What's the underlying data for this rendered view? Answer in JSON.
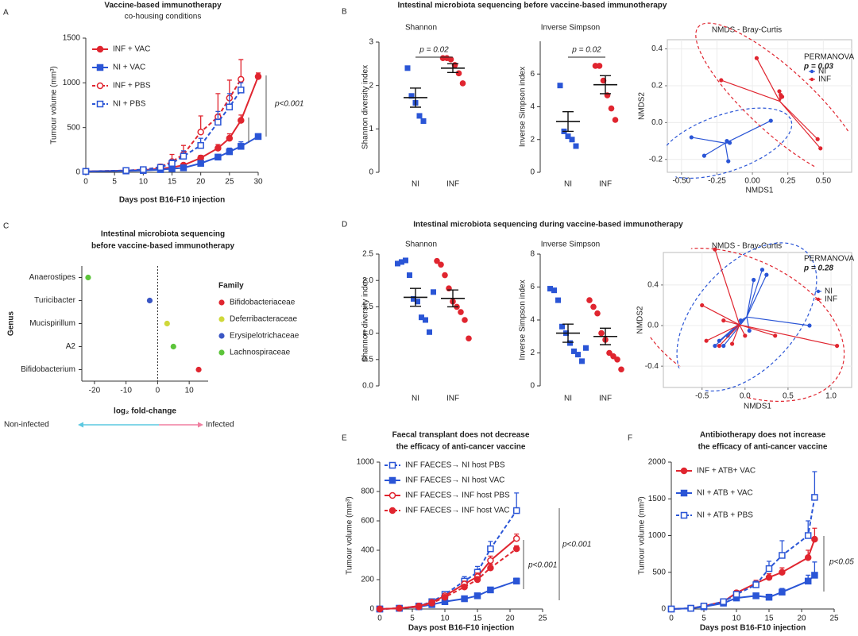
{
  "chart_data": [
    {
      "type": "line",
      "panel": "A",
      "title": "Vaccine-based immunotherapy",
      "subtitle": "co-housing conditions",
      "xlabel": "Days post B16-F10 injection",
      "ylabel": "Tumour volume (mm³)",
      "x": [
        0,
        7,
        10,
        13,
        15,
        17,
        20,
        23,
        25,
        27,
        30
      ],
      "xlim": [
        0,
        30
      ],
      "xticks": [
        0,
        5,
        10,
        15,
        20,
        25,
        30
      ],
      "ylim": [
        0,
        1500
      ],
      "yticks": [
        0,
        500,
        1000,
        1500
      ],
      "series": [
        {
          "name": "INF + VAC",
          "color": "#e0252f",
          "marker": "circle",
          "filled": true,
          "dashed": false,
          "values": [
            10,
            20,
            25,
            40,
            55,
            80,
            160,
            270,
            380,
            580,
            1070
          ],
          "errors": [
            5,
            5,
            8,
            10,
            15,
            20,
            30,
            40,
            50,
            60,
            40
          ]
        },
        {
          "name": "NI + VAC",
          "color": "#2a55d6",
          "marker": "square",
          "filled": true,
          "dashed": false,
          "values": [
            10,
            15,
            20,
            30,
            40,
            50,
            100,
            170,
            230,
            290,
            400
          ],
          "errors": [
            5,
            5,
            5,
            8,
            10,
            12,
            20,
            30,
            40,
            50,
            30
          ]
        },
        {
          "name": "INF + PBS",
          "color": "#e0252f",
          "marker": "circle",
          "filled": false,
          "dashed": true,
          "values": [
            10,
            20,
            30,
            60,
            120,
            200,
            450,
            620,
            830,
            1040,
            null
          ],
          "errors": [
            5,
            10,
            15,
            30,
            80,
            100,
            180,
            260,
            200,
            220,
            null
          ]
        },
        {
          "name": "NI + PBS",
          "color": "#2a55d6",
          "marker": "square",
          "filled": false,
          "dashed": true,
          "values": [
            10,
            20,
            30,
            55,
            100,
            180,
            300,
            560,
            730,
            920,
            null
          ],
          "errors": [
            5,
            10,
            15,
            25,
            40,
            60,
            80,
            120,
            150,
            80,
            null
          ]
        }
      ],
      "annotations": [
        "p<0.001"
      ]
    },
    {
      "type": "strip",
      "panel": "B",
      "group_title": "Intestinal microbiota sequencing before vaccine-based immunotherapy",
      "title": "Shannon",
      "ylabel": "Shannon diversity index",
      "categories": [
        "NI",
        "INF"
      ],
      "ylim": [
        0,
        3
      ],
      "yticks": [
        0,
        1,
        2,
        3
      ],
      "groups": [
        {
          "color": "#2a55d6",
          "marker": "square",
          "values": [
            2.4,
            1.76,
            1.6,
            1.3,
            1.18
          ],
          "mean": 1.72,
          "sem": 0.22
        },
        {
          "color": "#e0252f",
          "marker": "circle",
          "values": [
            2.63,
            2.63,
            2.6,
            2.47,
            2.28,
            2.05
          ],
          "mean": 2.4,
          "sem": 0.1
        }
      ],
      "annotation": "p = 0.02"
    },
    {
      "type": "strip",
      "title": "Inverse Simpson",
      "ylabel": "Inverse Simpson index",
      "categories": [
        "NI",
        "INF"
      ],
      "ylim": [
        0,
        8
      ],
      "yticks": [
        0,
        2,
        4,
        6
      ],
      "groups": [
        {
          "color": "#2a55d6",
          "marker": "square",
          "values": [
            5.3,
            2.5,
            2.2,
            2.0,
            1.6
          ],
          "mean": 3.1,
          "sem": 0.6
        },
        {
          "color": "#e0252f",
          "marker": "circle",
          "values": [
            6.5,
            6.5,
            5.6,
            4.7,
            3.9,
            3.2
          ],
          "mean": 5.35,
          "sem": 0.55
        }
      ],
      "annotation": "p = 0.02"
    },
    {
      "type": "scatter",
      "title": "NMDS - Bray-Curtis",
      "xlabel": "NMDS1",
      "ylabel": "NMDS2",
      "xlim": [
        -0.6,
        0.7
      ],
      "ylim": [
        -0.27,
        0.45
      ],
      "xticks": [
        {
          "value": -0.5,
          "label": "-0.50"
        },
        -0.25,
        {
          "value": 0,
          "label": "0.00"
        },
        0.25,
        {
          "value": 0.5,
          "label": "0.50"
        }
      ],
      "yticks": [
        -0.2,
        {
          "value": 0,
          "label": "0.0"
        },
        0.2,
        0.4
      ],
      "grid": true,
      "series": [
        {
          "name": "NI",
          "color": "#2a55d6",
          "x": [
            -0.17,
            -0.18,
            -0.34,
            -0.43,
            0.13,
            -0.16
          ],
          "y": [
            -0.21,
            -0.1,
            -0.18,
            -0.08,
            0.01,
            -0.11
          ]
        },
        {
          "name": "INF",
          "color": "#e0252f",
          "x": [
            0.48,
            0.46,
            -0.22,
            0.21,
            0.2,
            0.19,
            0.03
          ],
          "y": [
            -0.14,
            -0.09,
            0.23,
            0.14,
            0.15,
            0.17,
            0.35
          ]
        }
      ],
      "annotations": [
        "PERMANOVA",
        "p = 0.03"
      ]
    },
    {
      "type": "dot",
      "panel": "C",
      "title": [
        "Intestinal microbiota sequencing",
        "before vaccine-based immunotherapy"
      ],
      "ylabel": "Genus",
      "xlabel": "log₂ fold-change",
      "categories": [
        "Anaerostipes",
        "Turicibacter",
        "Mucispirillum",
        "A2",
        "Bifidobacterium"
      ],
      "values": [
        -22,
        -2.5,
        3,
        5,
        13
      ],
      "colors": [
        "#5cc43a",
        "#3a56c4",
        "#cfd83a",
        "#5cc43a",
        "#e0252f"
      ],
      "xlim": [
        -24,
        16
      ],
      "xticks": [
        -20,
        -10,
        0,
        10
      ],
      "refline": 0,
      "legend_title": "Family",
      "legend": [
        {
          "name": "Bifidobacteriaceae",
          "color": "#e0252f"
        },
        {
          "name": "Deferribacteraceae",
          "color": "#cfd83a"
        },
        {
          "name": "Erysipelotrichaceae",
          "color": "#3a56c4"
        },
        {
          "name": "Lachnospiraceae",
          "color": "#5cc43a"
        }
      ],
      "arrows": [
        {
          "text": "Non-infected",
          "color": "#5bc8e0"
        },
        {
          "text": "Infected",
          "color": "#f07fa0"
        }
      ]
    },
    {
      "type": "strip",
      "panel": "D",
      "group_title": "Intestinal microbiota sequencing during vaccine-based immunotherapy",
      "title": "Shannon",
      "ylabel": "Shannon diversity index",
      "categories": [
        "NI",
        "INF"
      ],
      "ylim": [
        0,
        2.5
      ],
      "yticks": [
        {
          "value": 0,
          "label": "0.0"
        },
        0.5,
        {
          "value": 1,
          "label": "1.0"
        },
        1.5,
        {
          "value": 2,
          "label": "2.0"
        },
        2.5
      ],
      "groups": [
        {
          "color": "#2a55d6",
          "marker": "square",
          "values": [
            2.32,
            2.35,
            2.38,
            2.1,
            1.65,
            1.6,
            1.3,
            1.25,
            1.02,
            1.78
          ],
          "mean": 1.68,
          "sem": 0.17
        },
        {
          "color": "#e0252f",
          "marker": "circle",
          "values": [
            2.37,
            2.3,
            2.1,
            1.85,
            1.6,
            1.5,
            1.4,
            1.25,
            0.9
          ],
          "mean": 1.66,
          "sem": 0.16
        }
      ]
    },
    {
      "type": "strip",
      "title": "Inverse Simpson",
      "ylabel": "Inverse Simpson index",
      "categories": [
        "NI",
        "INF"
      ],
      "ylim": [
        0,
        8
      ],
      "yticks": [
        0,
        2,
        4,
        6,
        8
      ],
      "groups": [
        {
          "color": "#2a55d6",
          "marker": "square",
          "values": [
            5.9,
            5.8,
            5.2,
            3.6,
            3.2,
            2.6,
            2.1,
            1.9,
            1.5,
            2.3
          ],
          "mean": 3.2,
          "sem": 0.55
        },
        {
          "color": "#e0252f",
          "marker": "circle",
          "values": [
            5.2,
            4.8,
            4.4,
            3.2,
            2.8,
            2.0,
            1.8,
            1.6,
            1.0
          ],
          "mean": 3.0,
          "sem": 0.5
        }
      ]
    },
    {
      "type": "scatter",
      "title": "NMDS - Bray-Curtis",
      "xlabel": "NMDS1",
      "ylabel": "NMDS2",
      "xlim": [
        -0.95,
        1.24
      ],
      "ylim": [
        -0.61,
        0.72
      ],
      "xticks": [
        -0.5,
        {
          "value": 0,
          "label": "0.0"
        },
        0.5,
        {
          "value": 1,
          "label": "1.0"
        }
      ],
      "yticks": [
        -0.4,
        {
          "value": 0,
          "label": "0.0"
        },
        0.4
      ],
      "grid": true,
      "series": [
        {
          "name": "NI",
          "color": "#2a55d6",
          "x": [
            0.2,
            0.25,
            0.1,
            0.75,
            -0.05,
            -0.2,
            -0.3,
            -0.25,
            0.05,
            -0.35
          ],
          "y": [
            0.55,
            0.5,
            0.45,
            0.0,
            0.05,
            -0.1,
            -0.15,
            -0.2,
            -0.05,
            -0.2
          ]
        },
        {
          "name": "INF",
          "color": "#e0252f",
          "x": [
            -0.35,
            1.07,
            -0.5,
            -0.45,
            0.35,
            -0.3,
            -0.15,
            0.0,
            -0.25
          ],
          "y": [
            0.75,
            -0.2,
            0.2,
            -0.15,
            -0.1,
            -0.2,
            -0.18,
            -0.1,
            0.05
          ]
        }
      ],
      "annotations": [
        "PERMANOVA",
        "p = 0.28"
      ]
    },
    {
      "type": "line",
      "panel": "E",
      "title": [
        "Faecal transplant does not decrease",
        "the efficacy of anti-cancer vaccine"
      ],
      "xlabel": "Days post B16-F10 injection",
      "ylabel": "Tumour volume (mm³)",
      "x": [
        0,
        3,
        6,
        8,
        10,
        13,
        15,
        17,
        21
      ],
      "xlim": [
        0,
        25
      ],
      "xticks": [
        0,
        5,
        10,
        15,
        20,
        25
      ],
      "ylim": [
        0,
        1000
      ],
      "yticks": [
        0,
        200,
        400,
        600,
        800,
        1000
      ],
      "series": [
        {
          "name": "INF FAECES→ NI host PBS",
          "color": "#2a55d6",
          "marker": "square",
          "filled": false,
          "dashed": true,
          "values": [
            0,
            5,
            20,
            50,
            100,
            190,
            250,
            410,
            670
          ],
          "errors": [
            0,
            3,
            5,
            10,
            15,
            30,
            40,
            50,
            120
          ]
        },
        {
          "name": "INF FAECES→ NI host VAC",
          "color": "#2a55d6",
          "marker": "square",
          "filled": true,
          "dashed": false,
          "values": [
            0,
            5,
            15,
            30,
            50,
            70,
            90,
            130,
            190
          ],
          "errors": [
            0,
            2,
            3,
            5,
            8,
            10,
            12,
            15,
            20
          ]
        },
        {
          "name": "INF FAECES→ INF host PBS",
          "color": "#e0252f",
          "marker": "circle",
          "filled": false,
          "dashed": false,
          "values": [
            0,
            5,
            20,
            45,
            90,
            170,
            220,
            330,
            480
          ],
          "errors": [
            0,
            3,
            5,
            8,
            12,
            20,
            25,
            30,
            30
          ]
        },
        {
          "name": "INF FAECES→ INF host VAC",
          "color": "#e0252f",
          "marker": "circle",
          "filled": true,
          "dashed": true,
          "values": [
            0,
            5,
            15,
            40,
            80,
            150,
            200,
            280,
            410
          ],
          "errors": [
            0,
            3,
            5,
            8,
            10,
            15,
            20,
            25,
            20
          ]
        }
      ],
      "annotations": [
        "p<0.001",
        "p<0.001"
      ]
    },
    {
      "type": "line",
      "panel": "F",
      "title": [
        "Antibiotherapy does not increase",
        "the efficacy of anti-cancer vaccine"
      ],
      "xlabel": "Days post B16-F10 injection",
      "ylabel": "Tumour volume (mm³)",
      "x": [
        0,
        3,
        5,
        8,
        10,
        13,
        15,
        17,
        21,
        22
      ],
      "xlim": [
        0,
        25
      ],
      "xticks": [
        0,
        5,
        10,
        15,
        20,
        25
      ],
      "ylim": [
        0,
        2000
      ],
      "yticks": [
        0,
        500,
        1000,
        1500,
        2000
      ],
      "series": [
        {
          "name": "INF + ATB+ VAC",
          "color": "#e0252f",
          "marker": "circle",
          "filled": true,
          "dashed": false,
          "values": [
            0,
            10,
            40,
            100,
            220,
            350,
            430,
            500,
            700,
            950
          ],
          "errors": [
            0,
            5,
            10,
            20,
            30,
            40,
            50,
            60,
            100,
            150
          ]
        },
        {
          "name": "NI + ATB + VAC",
          "color": "#2a55d6",
          "marker": "square",
          "filled": true,
          "dashed": false,
          "values": [
            0,
            10,
            30,
            80,
            150,
            180,
            160,
            230,
            380,
            460
          ],
          "errors": [
            0,
            5,
            10,
            15,
            20,
            30,
            40,
            50,
            80,
            180
          ]
        },
        {
          "name": "NI + ATB + PBS",
          "color": "#2a55d6",
          "marker": "square",
          "filled": false,
          "dashed": true,
          "values": [
            0,
            10,
            40,
            100,
            200,
            330,
            550,
            730,
            1000,
            1520
          ],
          "errors": [
            0,
            5,
            10,
            20,
            30,
            50,
            100,
            200,
            200,
            350
          ]
        }
      ],
      "annotations": [
        "p<0.05"
      ]
    }
  ]
}
